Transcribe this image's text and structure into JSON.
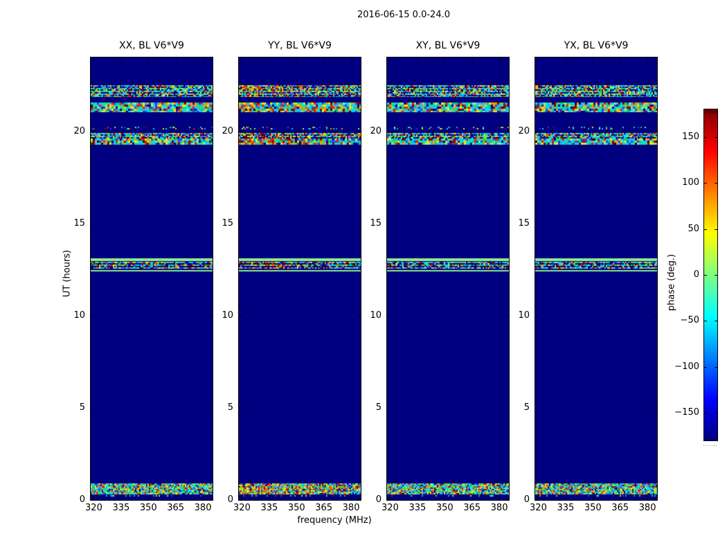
{
  "figure": {
    "title": "2016-06-15 0.0-24.0",
    "background": "#ffffff"
  },
  "chart_data": {
    "type": "heatmap",
    "title": "2016-06-15 0.0-24.0",
    "xlabel": "frequency (MHz)",
    "ylabel": "UT (hours)",
    "panels": [
      {
        "title": "XX, BL V6*V9",
        "pol": "XX",
        "baseline": "V6*V9",
        "noise_palette": "mixed"
      },
      {
        "title": "YY, BL V6*V9",
        "pol": "YY",
        "baseline": "V6*V9",
        "noise_palette": "warm"
      },
      {
        "title": "XY, BL V6*V9",
        "pol": "XY",
        "baseline": "V6*V9",
        "noise_palette": "mixed"
      },
      {
        "title": "YX, BL V6*V9",
        "pol": "YX",
        "baseline": "V6*V9",
        "noise_palette": "mixed"
      }
    ],
    "x_axis": {
      "label": "frequency (MHz)",
      "unit": "MHz",
      "range": [
        318.3,
        385.3
      ],
      "ticks": [
        320,
        335,
        350,
        365,
        380
      ]
    },
    "y_axis": {
      "label": "UT (hours)",
      "unit": "hours",
      "range": [
        0,
        24
      ],
      "ticks": [
        0,
        5,
        10,
        15,
        20
      ]
    },
    "colorbar": {
      "label": "phase (deg.)",
      "range": [
        -180,
        180
      ],
      "ticks": [
        -150,
        -100,
        -50,
        0,
        50,
        100,
        150
      ],
      "colormap": "jet",
      "gradient_stops": [
        [
          0,
          "#000080"
        ],
        [
          0.125,
          "#0000ff"
        ],
        [
          0.375,
          "#00ffff"
        ],
        [
          0.625,
          "#ffff00"
        ],
        [
          0.875,
          "#ff0000"
        ],
        [
          1,
          "#800000"
        ]
      ]
    },
    "background_color": "#000080",
    "solid_green": "#8dee8d",
    "bands": [
      {
        "ut_start": 21.87,
        "ut_end": 22.5,
        "style": "noise-fine"
      },
      {
        "ut_start": 21.04,
        "ut_end": 21.55,
        "style": "noise-coarse"
      },
      {
        "ut_start": 20.08,
        "ut_end": 20.23,
        "style": "noise-sparse"
      },
      {
        "ut_start": 19.6,
        "ut_end": 19.9,
        "style": "noise-fine"
      },
      {
        "ut_start": 19.25,
        "ut_end": 19.6,
        "style": "noise-coarse"
      },
      {
        "ut_start": 12.96,
        "ut_end": 13.12,
        "style": "solid-green"
      },
      {
        "ut_start": 12.55,
        "ut_end": 12.93,
        "style": "noise-rows"
      },
      {
        "ut_start": 12.42,
        "ut_end": 12.48,
        "style": "solid-green"
      },
      {
        "ut_start": 0.3,
        "ut_end": 0.9,
        "style": "noise-dense"
      },
      {
        "ut_start": 0.2,
        "ut_end": 0.27,
        "style": "noise-sparse"
      }
    ],
    "palettes": {
      "mixed": [
        "#00e0e0",
        "#30b0ff",
        "#2244ee",
        "#00c890",
        "#44dd44",
        "#99ee77",
        "#eeee00",
        "#ff9900",
        "#dd2200",
        "#880000"
      ],
      "warm": [
        "#dd2200",
        "#ff6600",
        "#ff9900",
        "#eeee00",
        "#99ee20",
        "#44dd44",
        "#00c8c8",
        "#2266ff",
        "#880000",
        "#30b0ff"
      ]
    }
  }
}
